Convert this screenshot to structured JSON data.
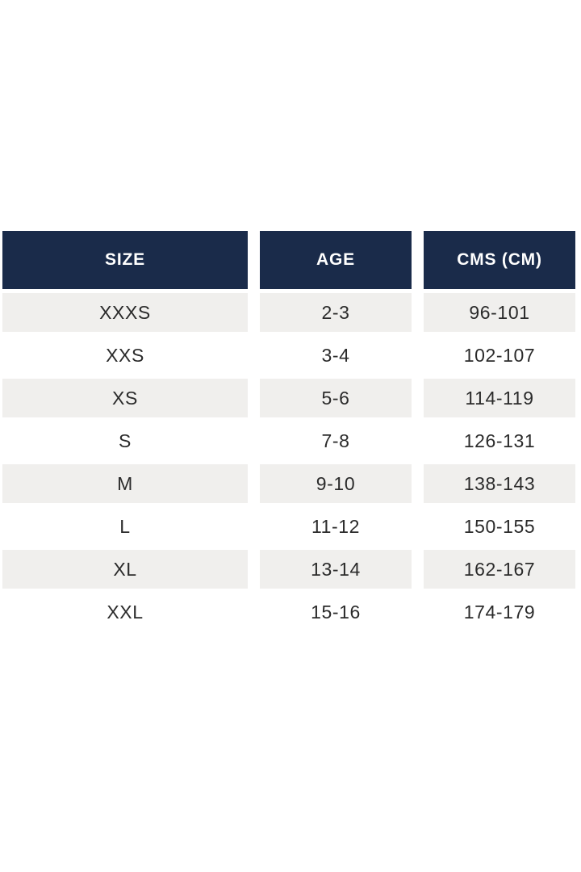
{
  "colors": {
    "page_bg": "#ffffff",
    "header_bg": "#1a2b4a",
    "header_text": "#ffffff",
    "stripe_bg": "#f0efed",
    "row_bg": "#ffffff",
    "body_text": "#2b2b2b"
  },
  "chart_data": {
    "type": "table",
    "columns": [
      "SIZE",
      "AGE",
      "CMS (CM)"
    ],
    "rows": [
      [
        "XXXS",
        "2-3",
        "96-101"
      ],
      [
        "XXS",
        "3-4",
        "102-107"
      ],
      [
        "XS",
        "5-6",
        "114-119"
      ],
      [
        "S",
        "7-8",
        "126-131"
      ],
      [
        "M",
        "9-10",
        "138-143"
      ],
      [
        "L",
        "11-12",
        "150-155"
      ],
      [
        "XL",
        "13-14",
        "162-167"
      ],
      [
        "XXL",
        "15-16",
        "174-179"
      ]
    ],
    "layout": {
      "striped_row_indices": [
        0,
        2,
        4,
        6
      ],
      "header_position": "top",
      "column_gaps": true
    }
  }
}
